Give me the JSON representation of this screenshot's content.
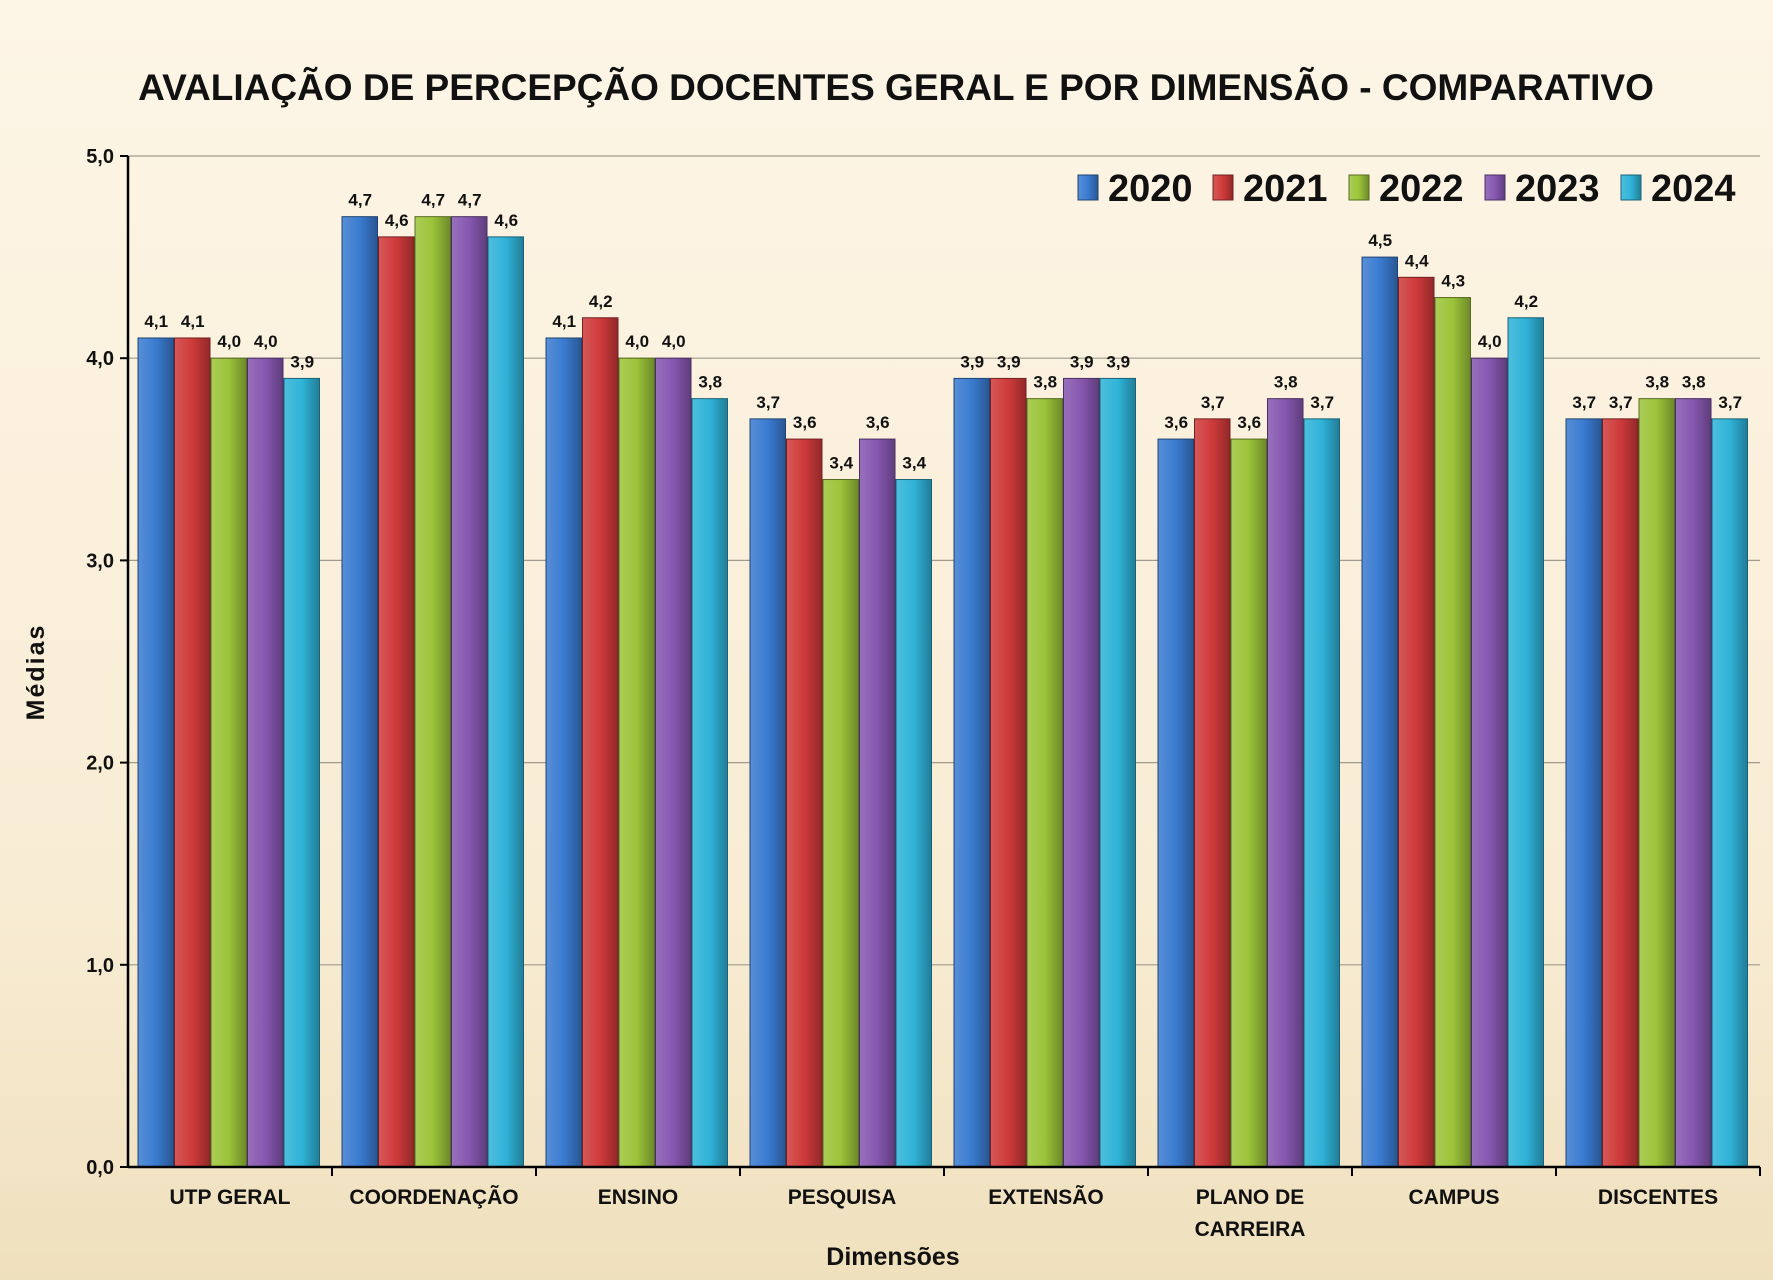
{
  "chart_data": {
    "type": "bar",
    "title": "AVALIAÇÃO DE PERCEPÇÃO DOCENTES GERAL E POR DIMENSÃO - COMPARATIVO",
    "xlabel": "Dimensões",
    "ylabel": "Médias",
    "ylim": [
      0,
      5
    ],
    "yticks": [
      "0,0",
      "1,0",
      "2,0",
      "3,0",
      "4,0",
      "5,0"
    ],
    "grid": true,
    "legend": "top-right",
    "categories": [
      "UTP GERAL",
      "COORDENAÇÃO",
      "ENSINO",
      "PESQUISA",
      "EXTENSÃO",
      "PLANO DE CARREIRA",
      "CAMPUS",
      "DISCENTES"
    ],
    "series": [
      {
        "name": "2020",
        "color": "#3a7bd0",
        "values": [
          4.1,
          4.7,
          4.1,
          3.7,
          3.9,
          3.6,
          4.5,
          3.7
        ],
        "labels": [
          "4,1",
          "4,7",
          "4,1",
          "3,7",
          "3,9",
          "3,6",
          "4,5",
          "3,7"
        ]
      },
      {
        "name": "2021",
        "color": "#cf3a3a",
        "values": [
          4.1,
          4.6,
          4.2,
          3.6,
          3.9,
          3.7,
          4.4,
          3.7
        ],
        "labels": [
          "4,1",
          "4,6",
          "4,2",
          "3,6",
          "3,9",
          "3,7",
          "4,4",
          "3,7"
        ]
      },
      {
        "name": "2022",
        "color": "#9cc43a",
        "values": [
          4.0,
          4.7,
          4.0,
          3.4,
          3.8,
          3.6,
          4.3,
          3.8
        ],
        "labels": [
          "4,0",
          "4,7",
          "4,0",
          "3,4",
          "3,8",
          "3,6",
          "4,3",
          "3,8"
        ]
      },
      {
        "name": "2023",
        "color": "#8657b0",
        "values": [
          4.0,
          4.7,
          4.0,
          3.6,
          3.9,
          3.8,
          4.0,
          3.8
        ],
        "labels": [
          "4,0",
          "4,7",
          "4,0",
          "3,6",
          "3,9",
          "3,8",
          "4,0",
          "3,8"
        ]
      },
      {
        "name": "2024",
        "color": "#2fb3d8",
        "values": [
          3.9,
          4.6,
          3.8,
          3.4,
          3.9,
          3.7,
          4.2,
          3.7
        ],
        "labels": [
          "3,9",
          "4,6",
          "3,8",
          "3,4",
          "3,9",
          "3,7",
          "4,2",
          "3,7"
        ]
      }
    ]
  }
}
